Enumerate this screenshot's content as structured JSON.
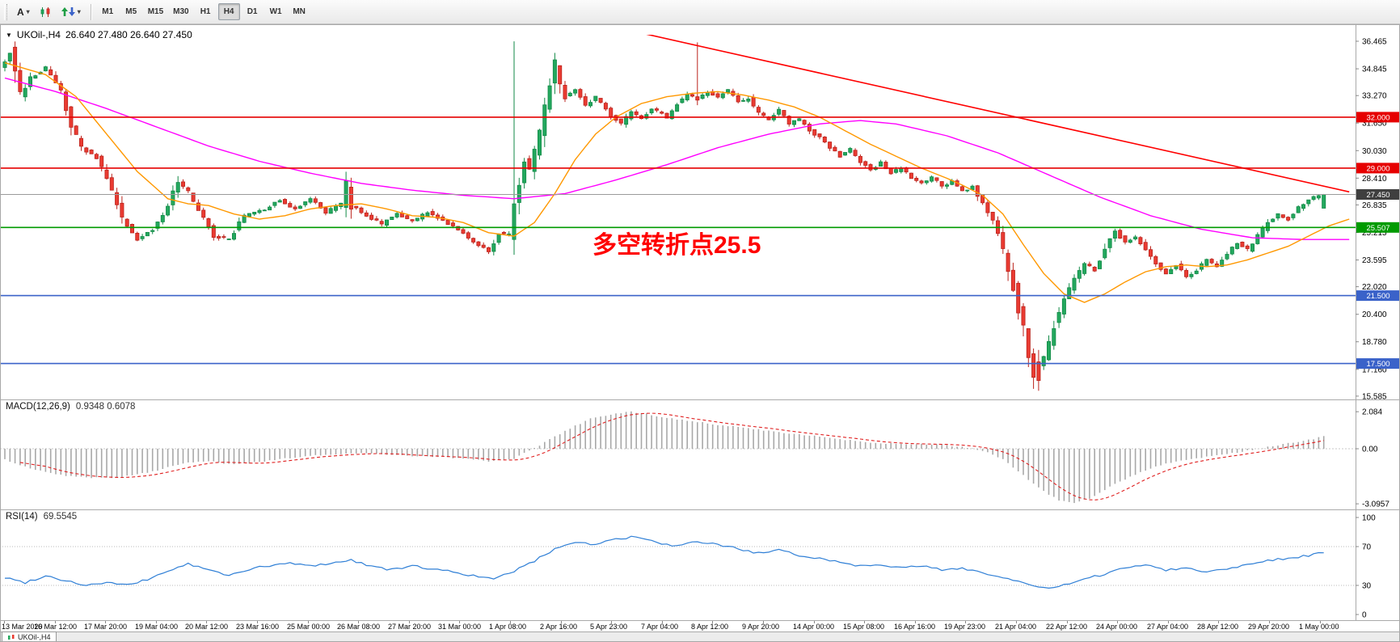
{
  "icons": {
    "menu_arrow": "▼",
    "dropdown": "▾"
  },
  "toolbar": {
    "text_tool_label": "A",
    "timeframes": [
      "M1",
      "M5",
      "M15",
      "M30",
      "H1",
      "H4",
      "D1",
      "W1",
      "MN"
    ],
    "active_timeframe": "H4"
  },
  "chart": {
    "symbol_period": "UKOil-,H4",
    "ohlc": "26.640 27.480 26.640 27.450",
    "annotation": "多空转折点25.5",
    "annotation_color": "#ff0000"
  },
  "status_tab": "UKOil-,H4",
  "chart_data": {
    "type": "candlestick",
    "symbol": "UKOil-",
    "timeframe": "H4",
    "ohlc_current": {
      "open": "26.640",
      "high": "27.480",
      "low": "26.640",
      "close": "27.450"
    },
    "visible_range": {
      "min": 15.2,
      "max": 36.8
    },
    "price_axis": {
      "ticks": [
        36.465,
        34.845,
        33.27,
        31.65,
        30.03,
        28.41,
        26.835,
        25.215,
        23.595,
        22.02,
        20.4,
        18.78,
        17.16,
        15.585
      ]
    },
    "levels": [
      {
        "price": 32.0,
        "label": "32.000",
        "color": "#e60000",
        "style": "solid"
      },
      {
        "price": 29.0,
        "label": "29.000",
        "color": "#e60000",
        "style": "solid"
      },
      {
        "price": 27.45,
        "label": "27.450",
        "color": "#3f3f3f",
        "style": "current"
      },
      {
        "price": 25.507,
        "label": "25.507",
        "color": "#009b00",
        "style": "solid"
      },
      {
        "price": 21.5,
        "label": "21.500",
        "color": "#3a62c9",
        "style": "solid"
      },
      {
        "price": 17.5,
        "label": "17.500",
        "color": "#3a62c9",
        "style": "solid"
      }
    ],
    "colors": {
      "up": "#23a85e",
      "up_stroke": "#128a47",
      "down": "#ea3b32",
      "down_stroke": "#bb231c",
      "ma_fast": "#ff9800",
      "ma_slow": "#ff00ff",
      "trendline": "#ff0000"
    },
    "candle_count": 260,
    "price_path_anchors": [
      [
        0,
        34.8
      ],
      [
        2,
        35.8
      ],
      [
        4,
        33.2
      ],
      [
        6,
        34.3
      ],
      [
        9,
        34.9
      ],
      [
        12,
        33.5
      ],
      [
        14,
        31.5
      ],
      [
        16,
        30.2
      ],
      [
        19,
        29.6
      ],
      [
        21,
        28.3
      ],
      [
        24,
        26.0
      ],
      [
        27,
        24.8
      ],
      [
        30,
        25.4
      ],
      [
        33,
        26.8
      ],
      [
        35,
        28.2
      ],
      [
        37,
        27.6
      ],
      [
        39,
        26.5
      ],
      [
        42,
        25.0
      ],
      [
        45,
        24.8
      ],
      [
        48,
        26.2
      ],
      [
        52,
        26.6
      ],
      [
        55,
        27.1
      ],
      [
        58,
        26.6
      ],
      [
        61,
        27.2
      ],
      [
        64,
        26.4
      ],
      [
        67,
        26.9
      ],
      [
        68,
        28.0
      ],
      [
        69,
        26.8
      ],
      [
        72,
        26.2
      ],
      [
        75,
        25.7
      ],
      [
        78,
        26.3
      ],
      [
        81,
        25.9
      ],
      [
        84,
        26.4
      ],
      [
        87,
        25.9
      ],
      [
        90,
        25.4
      ],
      [
        93,
        24.7
      ],
      [
        96,
        24.1
      ],
      [
        98,
        25.2
      ],
      [
        100,
        25.1
      ],
      [
        101,
        27.0
      ],
      [
        103,
        29.5
      ],
      [
        104,
        29.0
      ],
      [
        106,
        31.0
      ],
      [
        108,
        34.0
      ],
      [
        109,
        35.2
      ],
      [
        110,
        33.8
      ],
      [
        111,
        33.2
      ],
      [
        113,
        33.6
      ],
      [
        115,
        32.6
      ],
      [
        117,
        33.2
      ],
      [
        120,
        32.1
      ],
      [
        122,
        31.6
      ],
      [
        124,
        32.3
      ],
      [
        126,
        31.9
      ],
      [
        128,
        32.5
      ],
      [
        131,
        32.0
      ],
      [
        133,
        32.8
      ],
      [
        135,
        33.3
      ],
      [
        137,
        33.1
      ],
      [
        139,
        33.5
      ],
      [
        141,
        33.2
      ],
      [
        143,
        33.6
      ],
      [
        145,
        32.9
      ],
      [
        147,
        33.1
      ],
      [
        149,
        32.2
      ],
      [
        151,
        31.9
      ],
      [
        153,
        32.4
      ],
      [
        155,
        31.6
      ],
      [
        157,
        31.9
      ],
      [
        159,
        31.2
      ],
      [
        161,
        30.8
      ],
      [
        163,
        30.2
      ],
      [
        165,
        29.7
      ],
      [
        167,
        30.1
      ],
      [
        169,
        29.4
      ],
      [
        171,
        28.9
      ],
      [
        173,
        29.3
      ],
      [
        175,
        28.7
      ],
      [
        177,
        29.0
      ],
      [
        179,
        28.4
      ],
      [
        181,
        28.1
      ],
      [
        183,
        28.5
      ],
      [
        185,
        27.9
      ],
      [
        187,
        28.2
      ],
      [
        189,
        27.6
      ],
      [
        191,
        27.9
      ],
      [
        193,
        26.9
      ],
      [
        195,
        25.9
      ],
      [
        197,
        24.2
      ],
      [
        199,
        22.0
      ],
      [
        201,
        19.5
      ],
      [
        203,
        16.8
      ],
      [
        205,
        17.8
      ],
      [
        207,
        19.8
      ],
      [
        209,
        21.4
      ],
      [
        211,
        22.4
      ],
      [
        213,
        23.4
      ],
      [
        215,
        23.0
      ],
      [
        217,
        24.2
      ],
      [
        219,
        25.3
      ],
      [
        221,
        24.6
      ],
      [
        223,
        25.0
      ],
      [
        225,
        24.2
      ],
      [
        227,
        23.4
      ],
      [
        229,
        22.8
      ],
      [
        231,
        23.3
      ],
      [
        233,
        22.6
      ],
      [
        235,
        23.0
      ],
      [
        237,
        23.6
      ],
      [
        239,
        23.2
      ],
      [
        241,
        24.0
      ],
      [
        243,
        24.6
      ],
      [
        245,
        24.2
      ],
      [
        247,
        25.0
      ],
      [
        249,
        25.8
      ],
      [
        251,
        26.3
      ],
      [
        253,
        26.0
      ],
      [
        255,
        26.7
      ],
      [
        257,
        27.1
      ],
      [
        259,
        27.45
      ]
    ],
    "special_candles": [
      {
        "i": 100,
        "o": 24.8,
        "h": 36.46,
        "l": 23.9,
        "c": 26.9
      },
      {
        "i": 136,
        "o": 33.2,
        "h": 36.4,
        "l": 32.7,
        "c": 33.0
      },
      {
        "i": 203,
        "o": 17.6,
        "h": 18.3,
        "l": 15.9,
        "c": 16.5
      },
      {
        "i": 259,
        "o": 26.64,
        "h": 27.48,
        "l": 26.64,
        "c": 27.45
      }
    ],
    "ma_fast_anchors": [
      [
        0,
        35.2
      ],
      [
        8,
        34.5
      ],
      [
        14,
        33.2
      ],
      [
        20,
        31.0
      ],
      [
        26,
        28.8
      ],
      [
        32,
        27.2
      ],
      [
        36,
        26.9
      ],
      [
        40,
        26.8
      ],
      [
        45,
        26.3
      ],
      [
        50,
        26.0
      ],
      [
        55,
        26.2
      ],
      [
        60,
        26.6
      ],
      [
        65,
        26.8
      ],
      [
        70,
        26.9
      ],
      [
        75,
        26.6
      ],
      [
        80,
        26.2
      ],
      [
        85,
        26.1
      ],
      [
        90,
        25.8
      ],
      [
        95,
        25.2
      ],
      [
        100,
        25.0
      ],
      [
        104,
        25.8
      ],
      [
        108,
        27.5
      ],
      [
        112,
        29.5
      ],
      [
        116,
        31.0
      ],
      [
        120,
        32.0
      ],
      [
        125,
        32.8
      ],
      [
        130,
        33.2
      ],
      [
        135,
        33.4
      ],
      [
        140,
        33.5
      ],
      [
        145,
        33.3
      ],
      [
        150,
        33.0
      ],
      [
        155,
        32.6
      ],
      [
        160,
        32.0
      ],
      [
        165,
        31.2
      ],
      [
        170,
        30.4
      ],
      [
        175,
        29.7
      ],
      [
        180,
        29.0
      ],
      [
        185,
        28.4
      ],
      [
        188,
        28.0
      ],
      [
        192,
        27.4
      ],
      [
        196,
        26.3
      ],
      [
        200,
        24.5
      ],
      [
        204,
        22.8
      ],
      [
        208,
        21.6
      ],
      [
        212,
        21.1
      ],
      [
        216,
        21.6
      ],
      [
        220,
        22.3
      ],
      [
        224,
        22.9
      ],
      [
        228,
        23.2
      ],
      [
        232,
        23.3
      ],
      [
        236,
        23.2
      ],
      [
        240,
        23.3
      ],
      [
        244,
        23.6
      ],
      [
        248,
        24.0
      ],
      [
        252,
        24.4
      ],
      [
        256,
        25.0
      ],
      [
        260,
        25.6
      ],
      [
        264,
        26.0
      ]
    ],
    "ma_slow_anchors": [
      [
        0,
        34.3
      ],
      [
        10,
        33.5
      ],
      [
        20,
        32.5
      ],
      [
        30,
        31.4
      ],
      [
        40,
        30.3
      ],
      [
        50,
        29.4
      ],
      [
        60,
        28.7
      ],
      [
        70,
        28.1
      ],
      [
        80,
        27.7
      ],
      [
        90,
        27.4
      ],
      [
        100,
        27.2
      ],
      [
        110,
        27.5
      ],
      [
        120,
        28.3
      ],
      [
        130,
        29.2
      ],
      [
        140,
        30.2
      ],
      [
        150,
        31.0
      ],
      [
        160,
        31.6
      ],
      [
        168,
        31.8
      ],
      [
        175,
        31.6
      ],
      [
        185,
        30.9
      ],
      [
        195,
        29.9
      ],
      [
        205,
        28.6
      ],
      [
        215,
        27.3
      ],
      [
        225,
        26.2
      ],
      [
        235,
        25.4
      ],
      [
        245,
        24.9
      ],
      [
        255,
        24.8
      ],
      [
        264,
        24.8
      ]
    ],
    "trendline": {
      "from_index": 90,
      "from_price": 39.3,
      "to_index": 264,
      "to_price": 27.6
    },
    "macd": {
      "label": "MACD(12,26,9)",
      "values": "0.9348 0.6078",
      "axis": {
        "max": "2.084",
        "zero": "0.00",
        "min": "-3.0957"
      },
      "bar_color": "#a8a8a8",
      "signal_color": "#e01f1f",
      "anchors": [
        [
          0,
          -0.6
        ],
        [
          5,
          -1.1
        ],
        [
          10,
          -1.45
        ],
        [
          15,
          -1.6
        ],
        [
          20,
          -1.65
        ],
        [
          25,
          -1.5
        ],
        [
          30,
          -1.2
        ],
        [
          35,
          -0.8
        ],
        [
          40,
          -0.7
        ],
        [
          45,
          -0.9
        ],
        [
          50,
          -0.75
        ],
        [
          55,
          -0.55
        ],
        [
          60,
          -0.4
        ],
        [
          65,
          -0.3
        ],
        [
          70,
          -0.25
        ],
        [
          75,
          -0.35
        ],
        [
          80,
          -0.4
        ],
        [
          85,
          -0.45
        ],
        [
          90,
          -0.55
        ],
        [
          95,
          -0.7
        ],
        [
          100,
          -0.55
        ],
        [
          105,
          0.2
        ],
        [
          110,
          1.0
        ],
        [
          115,
          1.7
        ],
        [
          120,
          2.0
        ],
        [
          123,
          2.08
        ],
        [
          126,
          1.95
        ],
        [
          130,
          1.75
        ],
        [
          135,
          1.55
        ],
        [
          140,
          1.35
        ],
        [
          145,
          1.2
        ],
        [
          150,
          1.0
        ],
        [
          155,
          0.85
        ],
        [
          160,
          0.7
        ],
        [
          165,
          0.5
        ],
        [
          170,
          0.35
        ],
        [
          175,
          0.28
        ],
        [
          180,
          0.25
        ],
        [
          185,
          0.2
        ],
        [
          188,
          0.1
        ],
        [
          192,
          -0.1
        ],
        [
          196,
          -0.6
        ],
        [
          200,
          -1.5
        ],
        [
          204,
          -2.4
        ],
        [
          207,
          -2.9
        ],
        [
          210,
          -3.05
        ],
        [
          213,
          -2.8
        ],
        [
          216,
          -2.3
        ],
        [
          220,
          -1.7
        ],
        [
          224,
          -1.2
        ],
        [
          228,
          -0.85
        ],
        [
          232,
          -0.6
        ],
        [
          236,
          -0.45
        ],
        [
          240,
          -0.3
        ],
        [
          244,
          -0.1
        ],
        [
          248,
          0.1
        ],
        [
          252,
          0.3
        ],
        [
          256,
          0.5
        ],
        [
          260,
          0.75
        ],
        [
          264,
          0.93
        ]
      ]
    },
    "rsi": {
      "label": "RSI(14)",
      "value": "69.5545",
      "axis": [
        "100",
        "70",
        "30",
        "0"
      ],
      "levels": [
        70,
        30
      ],
      "line_color": "#2f7fd6",
      "anchors": [
        [
          0,
          38
        ],
        [
          4,
          33
        ],
        [
          8,
          40
        ],
        [
          12,
          35
        ],
        [
          16,
          30
        ],
        [
          20,
          33
        ],
        [
          24,
          30
        ],
        [
          28,
          36
        ],
        [
          32,
          45
        ],
        [
          36,
          52
        ],
        [
          40,
          46
        ],
        [
          44,
          40
        ],
        [
          48,
          47
        ],
        [
          52,
          50
        ],
        [
          56,
          53
        ],
        [
          60,
          50
        ],
        [
          64,
          53
        ],
        [
          68,
          56
        ],
        [
          72,
          50
        ],
        [
          76,
          46
        ],
        [
          80,
          50
        ],
        [
          84,
          47
        ],
        [
          88,
          44
        ],
        [
          92,
          40
        ],
        [
          96,
          36
        ],
        [
          100,
          45
        ],
        [
          104,
          55
        ],
        [
          108,
          68
        ],
        [
          112,
          75
        ],
        [
          116,
          72
        ],
        [
          120,
          78
        ],
        [
          124,
          80
        ],
        [
          128,
          74
        ],
        [
          132,
          70
        ],
        [
          136,
          75
        ],
        [
          140,
          72
        ],
        [
          144,
          68
        ],
        [
          148,
          63
        ],
        [
          152,
          66
        ],
        [
          156,
          61
        ],
        [
          160,
          58
        ],
        [
          164,
          54
        ],
        [
          168,
          50
        ],
        [
          172,
          52
        ],
        [
          176,
          48
        ],
        [
          180,
          50
        ],
        [
          184,
          46
        ],
        [
          188,
          48
        ],
        [
          192,
          43
        ],
        [
          196,
          38
        ],
        [
          200,
          32
        ],
        [
          204,
          27
        ],
        [
          208,
          30
        ],
        [
          212,
          36
        ],
        [
          216,
          42
        ],
        [
          220,
          48
        ],
        [
          224,
          52
        ],
        [
          228,
          46
        ],
        [
          232,
          48
        ],
        [
          236,
          44
        ],
        [
          240,
          47
        ],
        [
          244,
          52
        ],
        [
          248,
          56
        ],
        [
          252,
          58
        ],
        [
          256,
          61
        ],
        [
          260,
          65
        ],
        [
          264,
          69.55
        ]
      ]
    },
    "time_axis": [
      "13 Mar 2020",
      "16 Mar 12:00",
      "17 Mar 20:00",
      "19 Mar 04:00",
      "20 Mar 12:00",
      "23 Mar 16:00",
      "25 Mar 00:00",
      "26 Mar 08:00",
      "27 Mar 20:00",
      "31 Mar 00:00",
      "1 Apr 08:00",
      "2 Apr 16:00",
      "5 Apr 23:00",
      "7 Apr 04:00",
      "8 Apr 12:00",
      "9 Apr 20:00",
      "14 Apr 00:00",
      "15 Apr 08:00",
      "16 Apr 16:00",
      "19 Apr 23:00",
      "21 Apr 04:00",
      "22 Apr 12:00",
      "24 Apr 00:00",
      "27 Apr 04:00",
      "28 Apr 12:00",
      "29 Apr 20:00",
      "1 May 00:00"
    ]
  }
}
